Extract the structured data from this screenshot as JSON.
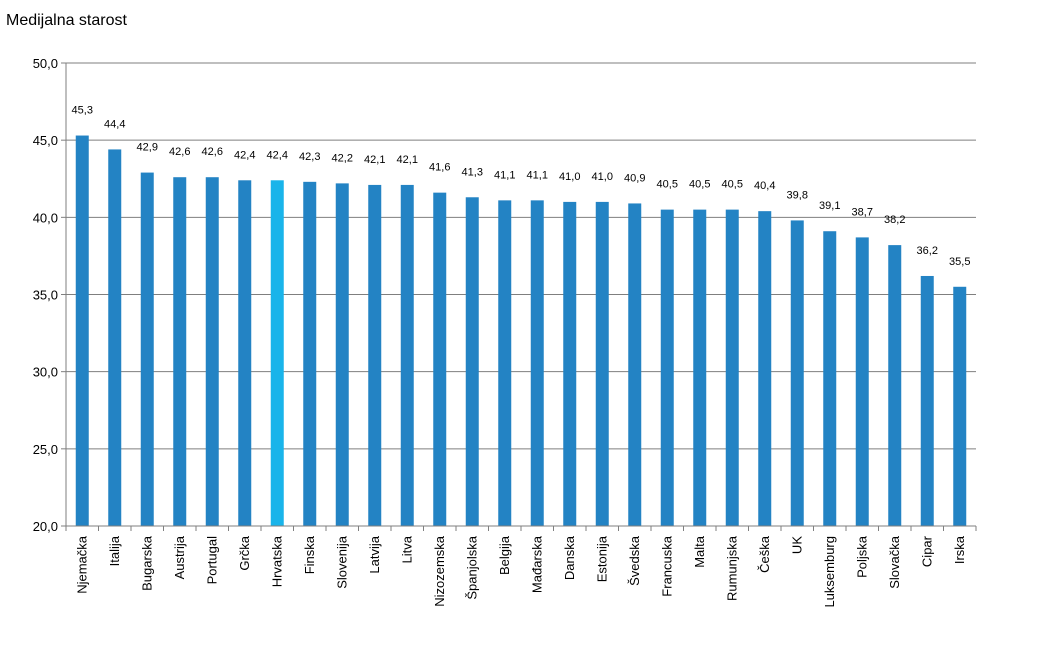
{
  "chart_data": {
    "type": "bar",
    "title": "Medijalna starost",
    "xlabel": "",
    "ylabel": "",
    "ylim": [
      20,
      50
    ],
    "yticks": [
      "20,0",
      "25,0",
      "30,0",
      "35,0",
      "40,0",
      "45,0",
      "50,0"
    ],
    "grid": true,
    "categories": [
      "Njemačka",
      "Italija",
      "Bugarska",
      "Austrija",
      "Portugal",
      "Grčka",
      "Hrvatska",
      "Finska",
      "Slovenija",
      "Latvija",
      "Litva",
      "Nizozemska",
      "Španjolska",
      "Belgija",
      "Mađarska",
      "Danska",
      "Estonija",
      "Švedska",
      "Francuska",
      "Malta",
      "Rumunjska",
      "Češka",
      "UK",
      "Luksemburg",
      "Poljska",
      "Slovačka",
      "Cipar",
      "Irska"
    ],
    "values": [
      45.3,
      44.4,
      42.9,
      42.6,
      42.6,
      42.4,
      42.4,
      42.3,
      42.2,
      42.1,
      42.1,
      41.6,
      41.3,
      41.1,
      41.1,
      41.0,
      41.0,
      40.9,
      40.5,
      40.5,
      40.5,
      40.4,
      39.8,
      39.1,
      38.7,
      38.2,
      36.2,
      35.5
    ],
    "value_labels": [
      "45,3",
      "44,4",
      "42,9",
      "42,6",
      "42,6",
      "42,4",
      "42,4",
      "42,3",
      "42,2",
      "42,1",
      "42,1",
      "41,6",
      "41,3",
      "41,1",
      "41,1",
      "41,0",
      "41,0",
      "40,9",
      "40,5",
      "40,5",
      "40,5",
      "40,4",
      "39,8",
      "39,1",
      "38,7",
      "38,2",
      "36,2",
      "35,5"
    ],
    "highlight": "Hrvatska",
    "colors": {
      "bar": "#2383c4",
      "highlight": "#19b4ea",
      "grid": "#7f7f7f",
      "axis": "#7f7f7f"
    }
  }
}
